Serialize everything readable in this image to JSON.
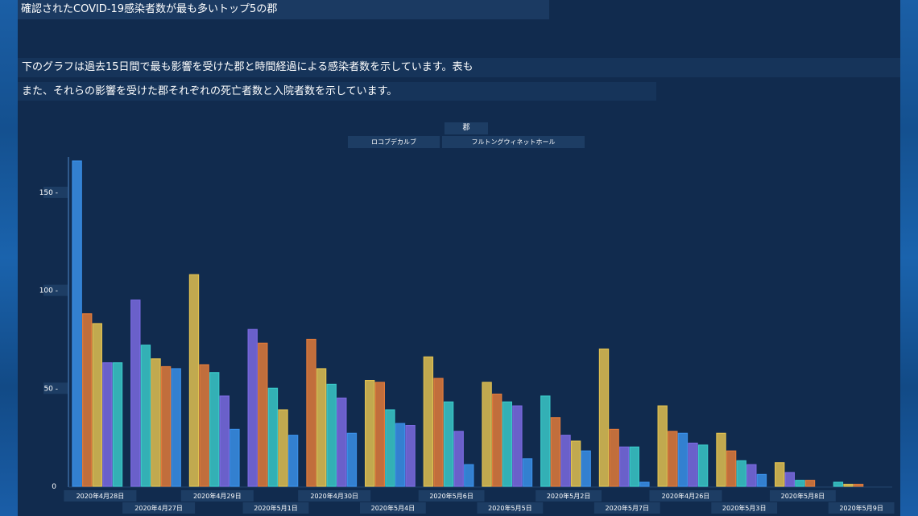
{
  "page": {
    "title": "確認されたCOVID-19感染者数が最も多いトップ5の郡",
    "description_line1": "下のグラフは過去15日間で最も影響を受けた郡と時間経過による感染者数を示しています。表も",
    "description_line2": "また、それらの影響を受けた郡それぞれの死亡者数と入院者数を示しています。"
  },
  "legend": {
    "title": "郡",
    "items": [
      "ロコブデカルブ",
      "フルトングウィネットホール"
    ]
  },
  "colors": {
    "background": "#112b4e",
    "edge": "#1a5ea8",
    "bar_fill_opacity": 0.85,
    "series": [
      "#3a8fe8",
      "#e07a3a",
      "#e0c050",
      "#7a6ae0",
      "#3ac8c8"
    ]
  },
  "chart_data": {
    "type": "bar",
    "title": "",
    "xlabel": "",
    "ylabel": "",
    "ylim": [
      0,
      170
    ],
    "yticks": [
      0,
      50,
      100,
      150
    ],
    "grid": false,
    "categories": [
      "2020年4月28日",
      "2020年4月27日",
      "2020年4月29日",
      "2020年5月1日",
      "2020年4月30日",
      "2020年5月4日",
      "2020年5月6日",
      "2020年5月5日",
      "2020年5月2日",
      "2020年5月7日",
      "2020年4月26日",
      "2020年5月3日",
      "2020年5月8日",
      "2020年5月9日"
    ],
    "groups": [
      {
        "values": [
          166,
          88,
          83,
          63,
          63
        ],
        "colors": [
          0,
          1,
          2,
          3,
          4
        ]
      },
      {
        "values": [
          95,
          72,
          65,
          61,
          60
        ],
        "colors": [
          3,
          4,
          2,
          1,
          0
        ]
      },
      {
        "values": [
          108,
          62,
          58,
          46,
          29
        ],
        "colors": [
          2,
          1,
          4,
          3,
          0
        ]
      },
      {
        "values": [
          80,
          73,
          50,
          39,
          26
        ],
        "colors": [
          3,
          1,
          4,
          2,
          0
        ]
      },
      {
        "values": [
          75,
          60,
          52,
          45,
          27
        ],
        "colors": [
          1,
          2,
          4,
          3,
          0
        ]
      },
      {
        "values": [
          54,
          53,
          39,
          32,
          31
        ],
        "colors": [
          2,
          1,
          4,
          0,
          3
        ]
      },
      {
        "values": [
          66,
          55,
          43,
          28,
          11
        ],
        "colors": [
          2,
          1,
          4,
          3,
          0
        ]
      },
      {
        "values": [
          53,
          47,
          43,
          41,
          14
        ],
        "colors": [
          2,
          1,
          4,
          3,
          0
        ]
      },
      {
        "values": [
          46,
          35,
          26,
          23,
          18
        ],
        "colors": [
          4,
          1,
          3,
          2,
          0
        ]
      },
      {
        "values": [
          70,
          29,
          20,
          20,
          2
        ],
        "colors": [
          2,
          1,
          3,
          4,
          0
        ]
      },
      {
        "values": [
          41,
          28,
          27,
          22,
          21
        ],
        "colors": [
          2,
          1,
          0,
          3,
          4
        ]
      },
      {
        "values": [
          27,
          18,
          13,
          11,
          6
        ],
        "colors": [
          2,
          1,
          4,
          3,
          0
        ]
      },
      {
        "values": [
          12,
          7,
          3,
          3
        ],
        "colors": [
          2,
          3,
          4,
          1
        ]
      },
      {
        "values": [
          2,
          1,
          1
        ],
        "colors": [
          4,
          2,
          1
        ]
      }
    ]
  }
}
